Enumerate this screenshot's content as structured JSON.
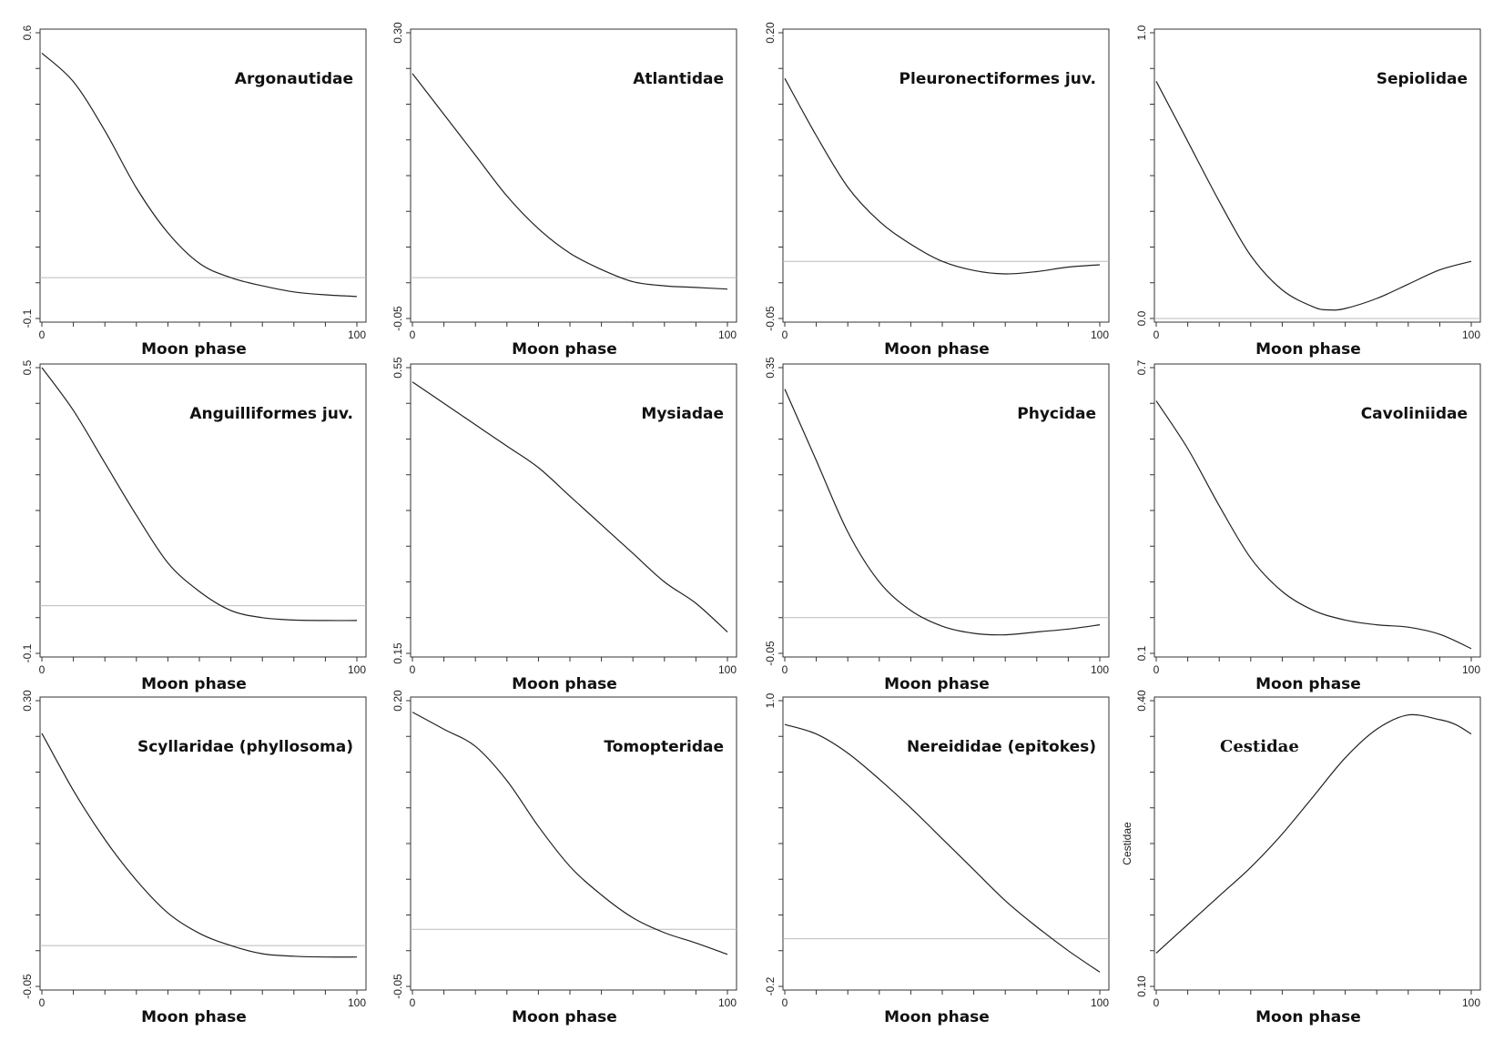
{
  "chart_data": [
    {
      "type": "line",
      "title": "Argonautidae",
      "xlabel": "Moon phase",
      "ylabel": "",
      "xlim": [
        0,
        100
      ],
      "ylim": [
        -0.1,
        0.6
      ],
      "y_ticks": [
        -0.1,
        0.6
      ],
      "y_tick_labels": [
        "-0.1",
        "0.6"
      ],
      "x_tick_labels": [
        "0",
        "100"
      ],
      "zero_line": true,
      "x": [
        0,
        10,
        20,
        30,
        40,
        50,
        60,
        70,
        80,
        90,
        100
      ],
      "y": [
        0.55,
        0.48,
        0.36,
        0.22,
        0.11,
        0.035,
        0.0,
        -0.02,
        -0.035,
        -0.042,
        -0.046
      ]
    },
    {
      "type": "line",
      "title": "Atlantidae",
      "xlabel": "Moon phase",
      "ylabel": "",
      "xlim": [
        0,
        100
      ],
      "ylim": [
        -0.05,
        0.3
      ],
      "y_ticks": [
        -0.05,
        0.3
      ],
      "y_tick_labels": [
        "-0.05",
        "0.30"
      ],
      "x_tick_labels": [
        "0",
        "100"
      ],
      "zero_line": true,
      "x": [
        0,
        10,
        20,
        30,
        40,
        50,
        60,
        70,
        80,
        90,
        100
      ],
      "y": [
        0.25,
        0.2,
        0.15,
        0.1,
        0.06,
        0.03,
        0.01,
        -0.005,
        -0.01,
        -0.012,
        -0.014
      ]
    },
    {
      "type": "line",
      "title": "Pleuronectiformes juv.",
      "xlabel": "Moon phase",
      "ylabel": "",
      "xlim": [
        0,
        100
      ],
      "ylim": [
        -0.05,
        0.2
      ],
      "y_ticks": [
        -0.05,
        0.2
      ],
      "y_tick_labels": [
        "-0.05",
        "0.20"
      ],
      "x_tick_labels": [
        "0",
        "100"
      ],
      "zero_line": true,
      "x": [
        0,
        10,
        20,
        30,
        40,
        50,
        60,
        70,
        80,
        90,
        100
      ],
      "y": [
        0.16,
        0.11,
        0.065,
        0.035,
        0.015,
        0.0,
        -0.008,
        -0.011,
        -0.009,
        -0.005,
        -0.003
      ]
    },
    {
      "type": "line",
      "title": "Sepiolidae",
      "xlabel": "Moon phase",
      "ylabel": "",
      "xlim": [
        0,
        100
      ],
      "ylim": [
        0.0,
        1.0
      ],
      "y_ticks": [
        0.0,
        1.0
      ],
      "y_tick_labels": [
        "0.0",
        "1.0"
      ],
      "x_tick_labels": [
        "0",
        "100"
      ],
      "zero_line": true,
      "x": [
        0,
        10,
        20,
        30,
        40,
        50,
        55,
        60,
        70,
        80,
        90,
        100
      ],
      "y": [
        0.83,
        0.62,
        0.41,
        0.22,
        0.1,
        0.04,
        0.03,
        0.035,
        0.07,
        0.12,
        0.17,
        0.2
      ]
    },
    {
      "type": "line",
      "title": "Anguilliformes juv.",
      "xlabel": "Moon phase",
      "ylabel": "",
      "xlim": [
        0,
        100
      ],
      "ylim": [
        -0.1,
        0.5
      ],
      "y_ticks": [
        -0.1,
        0.5
      ],
      "y_tick_labels": [
        "-0.1",
        "0.5"
      ],
      "x_tick_labels": [
        "0",
        "100"
      ],
      "zero_line": true,
      "x": [
        0,
        10,
        20,
        30,
        40,
        50,
        60,
        70,
        80,
        90,
        100
      ],
      "y": [
        0.5,
        0.41,
        0.3,
        0.19,
        0.09,
        0.03,
        -0.01,
        -0.025,
        -0.03,
        -0.031,
        -0.031
      ]
    },
    {
      "type": "line",
      "title": "Mysiadae",
      "xlabel": "Moon phase",
      "ylabel": "",
      "xlim": [
        0,
        100
      ],
      "ylim": [
        0.15,
        0.55
      ],
      "y_ticks": [
        0.15,
        0.55
      ],
      "y_tick_labels": [
        "0.15",
        "0.55"
      ],
      "x_tick_labels": [
        "0",
        "100"
      ],
      "zero_line": false,
      "x": [
        0,
        10,
        20,
        30,
        40,
        50,
        60,
        70,
        80,
        90,
        100
      ],
      "y": [
        0.53,
        0.5,
        0.47,
        0.44,
        0.41,
        0.37,
        0.33,
        0.29,
        0.25,
        0.22,
        0.18
      ]
    },
    {
      "type": "line",
      "title": "Phycidae",
      "xlabel": "Moon phase",
      "ylabel": "",
      "xlim": [
        0,
        100
      ],
      "ylim": [
        -0.05,
        0.35
      ],
      "y_ticks": [
        -0.05,
        0.35
      ],
      "y_tick_labels": [
        "-0.05",
        "0.35"
      ],
      "x_tick_labels": [
        "0",
        "100"
      ],
      "zero_line": true,
      "x": [
        0,
        10,
        20,
        30,
        40,
        50,
        60,
        70,
        80,
        90,
        100
      ],
      "y": [
        0.32,
        0.22,
        0.12,
        0.05,
        0.01,
        -0.012,
        -0.022,
        -0.024,
        -0.02,
        -0.016,
        -0.01
      ]
    },
    {
      "type": "line",
      "title": "Cavoliniidae",
      "xlabel": "Moon phase",
      "ylabel": "",
      "xlim": [
        0,
        100
      ],
      "ylim": [
        0.1,
        0.7
      ],
      "y_ticks": [
        0.1,
        0.7
      ],
      "y_tick_labels": [
        "0.1",
        "0.7"
      ],
      "x_tick_labels": [
        "0",
        "100"
      ],
      "zero_line": false,
      "x": [
        0,
        10,
        20,
        30,
        40,
        50,
        60,
        70,
        80,
        90,
        100
      ],
      "y": [
        0.63,
        0.53,
        0.41,
        0.3,
        0.23,
        0.19,
        0.17,
        0.16,
        0.155,
        0.14,
        0.11
      ]
    },
    {
      "type": "line",
      "title": "Scyllaridae (phyllosoma)",
      "xlabel": "Moon phase",
      "ylabel": "",
      "xlim": [
        0,
        100
      ],
      "ylim": [
        -0.05,
        0.3
      ],
      "y_ticks": [
        -0.05,
        0.3
      ],
      "y_tick_labels": [
        "-0.05",
        "0.30"
      ],
      "x_tick_labels": [
        "0",
        "100"
      ],
      "zero_line": true,
      "x": [
        0,
        10,
        20,
        30,
        40,
        50,
        60,
        70,
        80,
        90,
        100
      ],
      "y": [
        0.26,
        0.19,
        0.13,
        0.08,
        0.04,
        0.015,
        0.0,
        -0.01,
        -0.013,
        -0.014,
        -0.014
      ]
    },
    {
      "type": "line",
      "title": "Tomopteridae",
      "xlabel": "Moon phase",
      "ylabel": "",
      "xlim": [
        0,
        100
      ],
      "ylim": [
        -0.05,
        0.2
      ],
      "y_ticks": [
        -0.05,
        0.2
      ],
      "y_tick_labels": [
        "-0.05",
        "0.20"
      ],
      "x_tick_labels": [
        "0",
        "100"
      ],
      "zero_line": true,
      "x": [
        0,
        10,
        20,
        30,
        40,
        50,
        60,
        70,
        80,
        90,
        100
      ],
      "y": [
        0.19,
        0.175,
        0.16,
        0.13,
        0.09,
        0.055,
        0.03,
        0.01,
        -0.003,
        -0.012,
        -0.022
      ]
    },
    {
      "type": "line",
      "title": "Nereididae (epitokes)",
      "xlabel": "Moon phase",
      "ylabel": "",
      "xlim": [
        0,
        100
      ],
      "ylim": [
        -0.2,
        1.0
      ],
      "y_ticks": [
        -0.2,
        1.0
      ],
      "y_tick_labels": [
        "-0.2",
        "1.0"
      ],
      "x_tick_labels": [
        "0",
        "100"
      ],
      "zero_line": true,
      "x": [
        0,
        10,
        20,
        30,
        40,
        50,
        60,
        70,
        80,
        90,
        100
      ],
      "y": [
        0.9,
        0.86,
        0.78,
        0.67,
        0.55,
        0.42,
        0.29,
        0.16,
        0.05,
        -0.05,
        -0.14
      ]
    },
    {
      "type": "line",
      "title": "Cestidae",
      "xlabel": "Moon phase",
      "ylabel": "Cestidae",
      "xlim": [
        0,
        100
      ],
      "ylim": [
        0.1,
        0.4
      ],
      "y_ticks": [
        0.1,
        0.4
      ],
      "y_tick_labels": [
        "0.10",
        "0.40"
      ],
      "x_tick_labels": [
        "0",
        "100"
      ],
      "zero_line": false,
      "x": [
        0,
        10,
        20,
        30,
        40,
        50,
        60,
        70,
        80,
        90,
        95,
        100
      ],
      "y": [
        0.135,
        0.165,
        0.195,
        0.225,
        0.26,
        0.3,
        0.34,
        0.37,
        0.385,
        0.38,
        0.375,
        0.365
      ]
    }
  ],
  "colors": {
    "curve": "#222222",
    "zero_line": "#bbbbbb",
    "frame": "#333333",
    "background": "#ffffff"
  }
}
